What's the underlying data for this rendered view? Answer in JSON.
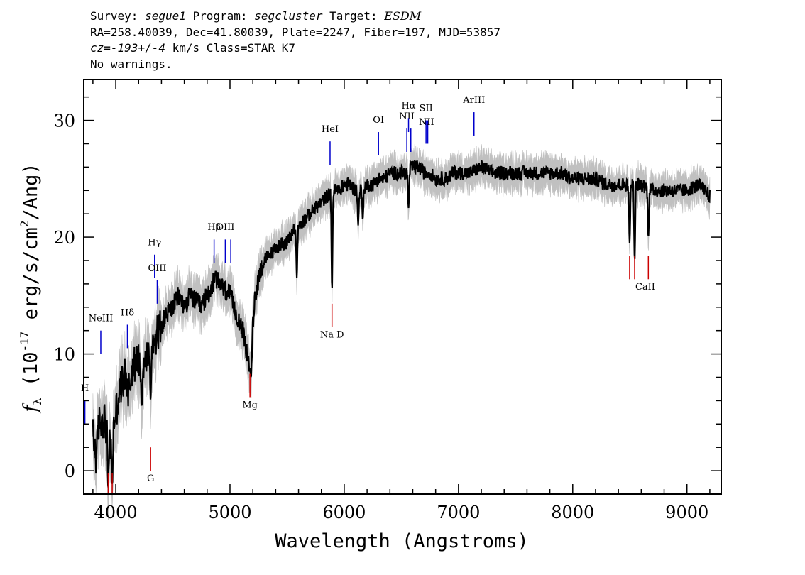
{
  "header": {
    "line1": {
      "p1": "Survey: ",
      "survey": "segue1",
      "p2": " Program: ",
      "program": "segcluster",
      "p3": " Target: ",
      "target": "ESDM"
    },
    "line2": "RA=258.40039, Dec=41.80039, Plate=2247, Fiber=197, MJD=53857",
    "line3": {
      "cz_label": "cz=",
      "cz_value": "-193+/-4",
      "rest": " km/s Class=STAR K7"
    },
    "line4": "No warnings."
  },
  "chart_data": {
    "type": "line",
    "xlabel": "Wavelength (Angstroms)",
    "ylabel_prefix": "f",
    "ylabel_sub": "λ",
    "ylabel_body": " (10",
    "ylabel_exp": "-17",
    "ylabel_tail": " erg/s/cm",
    "ylabel_exp2": "2",
    "ylabel_end": "/Ang)",
    "xlim": [
      3720,
      9300
    ],
    "ylim": [
      -2,
      33.5
    ],
    "xticks": [
      4000,
      5000,
      6000,
      7000,
      8000,
      9000
    ],
    "xtick_labels": [
      "4000",
      "5000",
      "6000",
      "7000",
      "8000",
      "9000"
    ],
    "yticks": [
      0,
      10,
      20,
      30
    ],
    "ytick_labels": [
      "0",
      "10",
      "20",
      "30"
    ],
    "x_minor_step": 200,
    "y_minor_step": 2,
    "colors": {
      "flux": "#000000",
      "error": "#c0c0c0",
      "emission": "#0000cc",
      "absorption": "#cc0000"
    },
    "flux_nodes": [
      [
        3800,
        3.0
      ],
      [
        3830,
        1.0
      ],
      [
        3850,
        4.0
      ],
      [
        3900,
        4.5
      ],
      [
        3930,
        3.0
      ],
      [
        3960,
        2.0
      ],
      [
        3990,
        4.5
      ],
      [
        4020,
        6.0
      ],
      [
        4050,
        7.5
      ],
      [
        4080,
        8.0
      ],
      [
        4110,
        7.0
      ],
      [
        4150,
        9.0
      ],
      [
        4200,
        9.5
      ],
      [
        4250,
        9.0
      ],
      [
        4300,
        10.5
      ],
      [
        4350,
        11.5
      ],
      [
        4400,
        12.5
      ],
      [
        4450,
        13.5
      ],
      [
        4500,
        14.0
      ],
      [
        4550,
        15.0
      ],
      [
        4600,
        14.0
      ],
      [
        4650,
        15.0
      ],
      [
        4700,
        14.5
      ],
      [
        4750,
        14.0
      ],
      [
        4800,
        15.0
      ],
      [
        4850,
        16.0
      ],
      [
        4880,
        16.5
      ],
      [
        4900,
        16.0
      ],
      [
        4950,
        15.5
      ],
      [
        5000,
        15.0
      ],
      [
        5050,
        13.5
      ],
      [
        5100,
        12.5
      ],
      [
        5150,
        10.0
      ],
      [
        5180,
        9.5
      ],
      [
        5220,
        15.0
      ],
      [
        5260,
        17.0
      ],
      [
        5300,
        18.0
      ],
      [
        5350,
        18.5
      ],
      [
        5400,
        19.0
      ],
      [
        5450,
        19.5
      ],
      [
        5500,
        19.5
      ],
      [
        5550,
        20.5
      ],
      [
        5600,
        21.0
      ],
      [
        5650,
        21.5
      ],
      [
        5700,
        22.0
      ],
      [
        5750,
        22.5
      ],
      [
        5800,
        23.0
      ],
      [
        5850,
        23.5
      ],
      [
        5900,
        24.0
      ],
      [
        5950,
        24.0
      ],
      [
        6000,
        24.5
      ],
      [
        6050,
        24.5
      ],
      [
        6100,
        24.0
      ],
      [
        6150,
        24.0
      ],
      [
        6200,
        24.5
      ],
      [
        6250,
        24.5
      ],
      [
        6300,
        25.0
      ],
      [
        6350,
        25.0
      ],
      [
        6400,
        25.5
      ],
      [
        6450,
        25.5
      ],
      [
        6500,
        25.5
      ],
      [
        6550,
        25.5
      ],
      [
        6600,
        26.0
      ],
      [
        6650,
        26.0
      ],
      [
        6700,
        25.5
      ],
      [
        6750,
        25.5
      ],
      [
        6800,
        25.0
      ],
      [
        6850,
        25.0
      ],
      [
        6900,
        25.0
      ],
      [
        6950,
        25.5
      ],
      [
        7000,
        25.5
      ],
      [
        7100,
        25.5
      ],
      [
        7200,
        26.0
      ],
      [
        7300,
        25.5
      ],
      [
        7400,
        25.5
      ],
      [
        7500,
        25.5
      ],
      [
        7600,
        25.5
      ],
      [
        7700,
        25.5
      ],
      [
        7800,
        25.5
      ],
      [
        7900,
        25.5
      ],
      [
        8000,
        25.0
      ],
      [
        8100,
        25.0
      ],
      [
        8200,
        25.0
      ],
      [
        8300,
        24.5
      ],
      [
        8400,
        24.5
      ],
      [
        8500,
        24.5
      ],
      [
        8600,
        24.5
      ],
      [
        8700,
        24.0
      ],
      [
        8800,
        24.0
      ],
      [
        8900,
        24.0
      ],
      [
        9000,
        24.0
      ],
      [
        9100,
        24.5
      ],
      [
        9150,
        24.0
      ],
      [
        9200,
        23.5
      ]
    ],
    "absorption_dips": [
      [
        3934,
        -1.5
      ],
      [
        3969,
        -1.2
      ],
      [
        4227,
        5.5
      ],
      [
        4305,
        6.0
      ],
      [
        5170,
        8.5
      ],
      [
        5184,
        8.0
      ],
      [
        5585,
        16.5
      ],
      [
        5893,
        15.5
      ],
      [
        6122,
        21.0
      ],
      [
        6162,
        21.5
      ],
      [
        6563,
        22.5
      ],
      [
        8498,
        19.5
      ],
      [
        8542,
        18.0
      ],
      [
        8662,
        20.0
      ]
    ],
    "emission_lines": [
      {
        "label": "H",
        "x": 3730,
        "y1": 4.0,
        "y2": 6.0,
        "label_y": 6.8
      },
      {
        "label": "NeIII",
        "x": 3869,
        "y1": 10.0,
        "y2": 12.0,
        "label_y": 12.8
      },
      {
        "label": "Hδ",
        "x": 4102,
        "y1": 10.5,
        "y2": 12.5,
        "label_y": 13.3
      },
      {
        "label": "Hγ",
        "x": 4340,
        "y1": 16.5,
        "y2": 18.5,
        "label_y": 19.3
      },
      {
        "label": "OIII",
        "x": 4363,
        "y1": 14.3,
        "y2": 16.3,
        "label_y": 17.1
      },
      {
        "label": "Hβ",
        "x": 4861,
        "y1": 17.8,
        "y2": 19.8,
        "label_y": 20.6
      },
      {
        "label": "OIII",
        "x": 4959,
        "y1": 17.8,
        "y2": 19.8,
        "label_y": 20.6
      },
      {
        "label": "OIII",
        "x": 5007,
        "y1": 17.8,
        "y2": 19.8,
        "label_y": null
      },
      {
        "label": "HeI",
        "x": 5876,
        "y1": 26.2,
        "y2": 28.2,
        "label_y": 29.0
      },
      {
        "label": "OI",
        "x": 6300,
        "y1": 27.0,
        "y2": 29.0,
        "label_y": 29.8
      },
      {
        "label": "NII",
        "x": 6548,
        "y1": 27.3,
        "y2": 29.3,
        "label_y": 30.1
      },
      {
        "label": "Hα",
        "x": 6563,
        "y1": 29.0,
        "y2": 30.2,
        "label_y": 31.0
      },
      {
        "label": "NII",
        "x": 6583,
        "y1": 27.3,
        "y2": 29.3,
        "label_y": null
      },
      {
        "label": "SII",
        "x": 6716,
        "y1": 28.0,
        "y2": 30.0,
        "label_y": 30.8
      },
      {
        "label": "SII",
        "x": 6731,
        "y1": 28.0,
        "y2": 30.0,
        "label_y": null
      },
      {
        "label": "ArIII",
        "x": 7136,
        "y1": 28.7,
        "y2": 30.7,
        "label_y": 31.5
      }
    ],
    "emission_label_overrides": [
      {
        "label": "NII",
        "x": 6720,
        "label_y": 29.6
      }
    ],
    "absorption_lines": [
      {
        "label": "",
        "x": 3934,
        "y1": -2.0,
        "y2": -0.2,
        "label_y": null
      },
      {
        "label": "",
        "x": 3969,
        "y1": -2.0,
        "y2": -0.2,
        "label_y": null
      },
      {
        "label": "G",
        "x": 4305,
        "y1": 0.0,
        "y2": 2.0,
        "label_y": -0.9
      },
      {
        "label": "Mg",
        "x": 5175,
        "y1": 6.3,
        "y2": 8.3,
        "label_y": 5.4
      },
      {
        "label": "Na D",
        "x": 5893,
        "y1": 12.3,
        "y2": 14.3,
        "label_y": 11.4
      },
      {
        "label": "CaII",
        "x": 8498,
        "y1": 16.4,
        "y2": 18.4,
        "label_y": 15.5
      },
      {
        "label": "",
        "x": 8542,
        "y1": 16.4,
        "y2": 18.4,
        "label_y": null
      },
      {
        "label": "",
        "x": 8662,
        "y1": 16.4,
        "y2": 18.4,
        "label_y": null
      }
    ]
  }
}
